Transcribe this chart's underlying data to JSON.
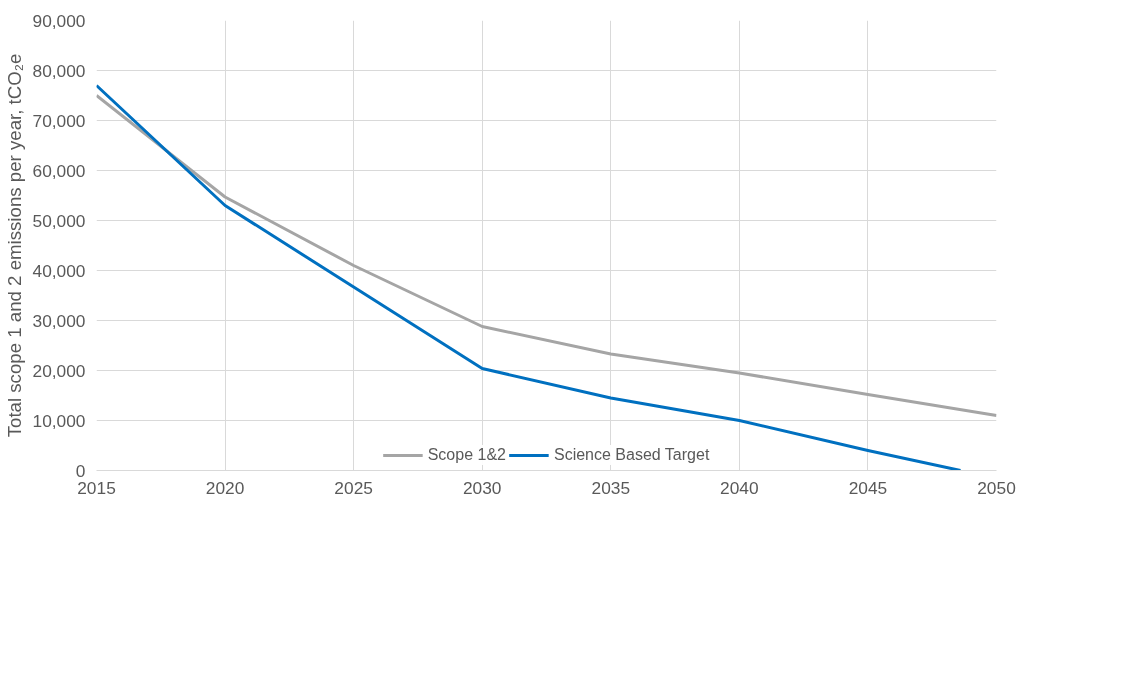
{
  "chart_data": {
    "type": "line",
    "ylabel": "Total scope 1 and 2 emissions per year, tCO₂e",
    "xlim": [
      2015,
      2050
    ],
    "xticks": [
      2015,
      2020,
      2025,
      2030,
      2035,
      2040,
      2045,
      2050
    ],
    "ylim": [
      0,
      90000
    ],
    "yticks": [
      {
        "value": 0,
        "label": "0"
      },
      {
        "value": 10000,
        "label": "10,000"
      },
      {
        "value": 20000,
        "label": "20,000"
      },
      {
        "value": 30000,
        "label": "30,000"
      },
      {
        "value": 40000,
        "label": "40,000"
      },
      {
        "value": 50000,
        "label": "50,000"
      },
      {
        "value": 60000,
        "label": "60,000"
      },
      {
        "value": 70000,
        "label": "70,000"
      },
      {
        "value": 80000,
        "label": "80,000"
      },
      {
        "value": 90000,
        "label": "90,000"
      }
    ],
    "grid": true,
    "legend": "bottom",
    "marker": "none",
    "line_style": "solid",
    "series": [
      {
        "name": "Scope 1&2",
        "color": "#a5a5a5",
        "x": [
          2015,
          2020,
          2025,
          2030,
          2035,
          2040,
          2045,
          2050
        ],
        "values": [
          75000,
          54700,
          41000,
          28800,
          23300,
          19500,
          15200,
          11000
        ]
      },
      {
        "name": "Science Based Target",
        "color": "#0070c0",
        "x": [
          2015,
          2020,
          2025,
          2030,
          2035,
          2040,
          2045,
          2048.6
        ],
        "values": [
          77000,
          53000,
          36700,
          20400,
          14500,
          10000,
          4000,
          0
        ]
      }
    ]
  }
}
